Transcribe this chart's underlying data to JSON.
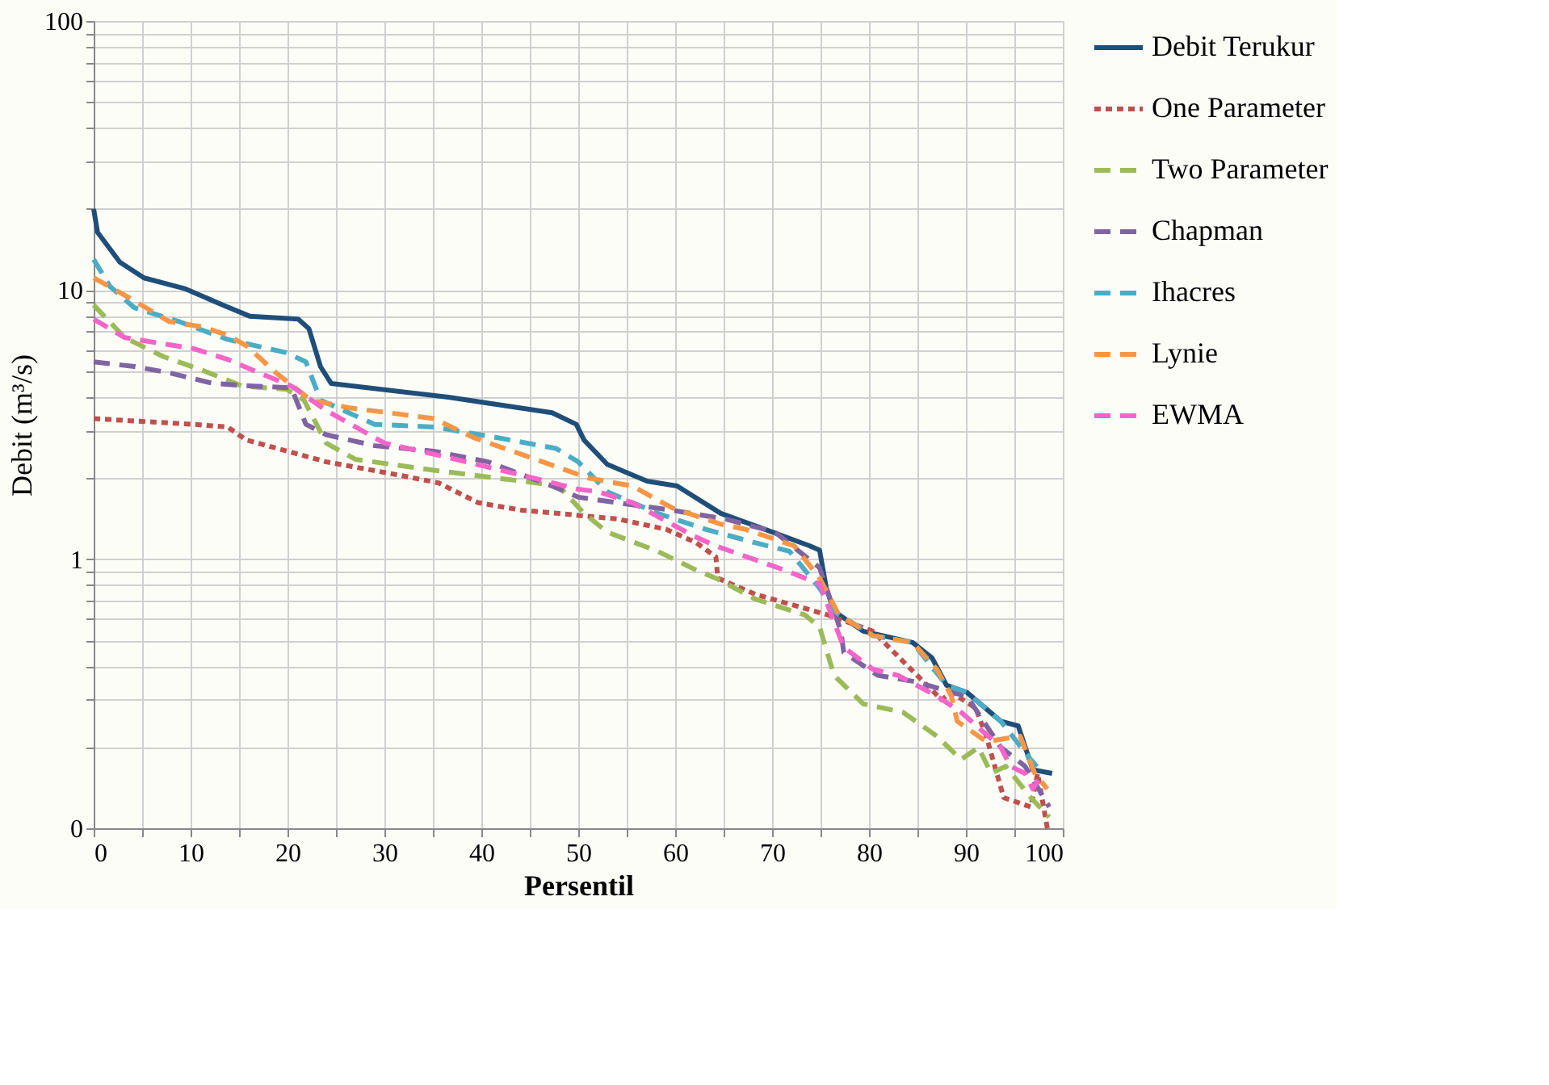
{
  "chart_data": {
    "type": "line",
    "xlabel": "Persentil",
    "ylabel": "Debit (m³/s)",
    "log": "y",
    "grid": true,
    "legend": "right",
    "xlim": [
      0,
      100
    ],
    "ylim": [
      0.1,
      100
    ],
    "xticks": [
      0,
      {
        "value": 5,
        "label": null
      },
      10,
      {
        "value": 15,
        "label": null
      },
      20,
      {
        "value": 25,
        "label": null
      },
      30,
      {
        "value": 35,
        "label": null
      },
      40,
      {
        "value": 45,
        "label": null
      },
      50,
      {
        "value": 55,
        "label": null
      },
      60,
      {
        "value": 65,
        "label": null
      },
      70,
      {
        "value": 75,
        "label": null
      },
      80,
      {
        "value": 85,
        "label": null
      },
      90,
      {
        "value": 95,
        "label": null
      },
      100
    ],
    "yticks": [
      {
        "value": 0.1,
        "label": "0"
      },
      {
        "value": 0.2,
        "label": null
      },
      {
        "value": 0.3,
        "label": null
      },
      {
        "value": 0.4,
        "label": null
      },
      {
        "value": 0.5,
        "label": null
      },
      {
        "value": 0.6,
        "label": null
      },
      {
        "value": 0.7,
        "label": null
      },
      {
        "value": 0.8,
        "label": null
      },
      {
        "value": 0.9,
        "label": null
      },
      1,
      {
        "value": 2,
        "label": null
      },
      {
        "value": 3,
        "label": null
      },
      {
        "value": 4,
        "label": null
      },
      {
        "value": 5,
        "label": null
      },
      {
        "value": 6,
        "label": null
      },
      {
        "value": 7,
        "label": null
      },
      {
        "value": 8,
        "label": null
      },
      {
        "value": 9,
        "label": null
      },
      10,
      {
        "value": 20,
        "label": null
      },
      {
        "value": 30,
        "label": null
      },
      {
        "value": 40,
        "label": null
      },
      {
        "value": 50,
        "label": null
      },
      {
        "value": 60,
        "label": null
      },
      {
        "value": 70,
        "label": null
      },
      {
        "value": 80,
        "label": null
      },
      {
        "value": 90,
        "label": null
      },
      100
    ],
    "series": [
      {
        "name": "Debit Terukur",
        "color": "#1f4e79",
        "line_style": "solid",
        "x": [
          0,
          0.4,
          2.7,
          5.2,
          9.5,
          13.3,
          16.1,
          21.1,
          22.2,
          23.4,
          24.5,
          36.6,
          47.3,
          49.8,
          50.6,
          53,
          57.1,
          60.2,
          64.7,
          69.3,
          73.9,
          74.9,
          75.6,
          76.4,
          79.4,
          84.5,
          86.5,
          88,
          90.1,
          93.6,
          95.4,
          96.9,
          98.9
        ],
        "values": [
          20,
          16.4,
          12.7,
          11.1,
          10.1,
          8.8,
          8.0,
          7.8,
          7.2,
          5.2,
          4.5,
          4.0,
          3.5,
          3.17,
          2.77,
          2.25,
          1.95,
          1.87,
          1.48,
          1.29,
          1.12,
          1.08,
          0.78,
          0.64,
          0.54,
          0.49,
          0.43,
          0.34,
          0.32,
          0.25,
          0.24,
          0.165,
          0.16
        ]
      },
      {
        "name": "One Parameter",
        "color": "#c0504d",
        "line_style": "dotted",
        "x": [
          0,
          10.3,
          13.8,
          15.8,
          24,
          31.6,
          35.6,
          39.7,
          44.2,
          48,
          50.3,
          54.1,
          59.1,
          62.2,
          64.2,
          64.4,
          68.3,
          75.8,
          80.4,
          87.5,
          88.5,
          91,
          92.1,
          93.9,
          96.7,
          97.4,
          98.4
        ],
        "values": [
          3.33,
          3.17,
          3.1,
          2.77,
          2.3,
          2.05,
          1.92,
          1.62,
          1.52,
          1.48,
          1.45,
          1.41,
          1.29,
          1.15,
          1.02,
          0.85,
          0.74,
          0.62,
          0.54,
          0.3,
          0.32,
          0.28,
          0.22,
          0.13,
          0.12,
          0.16,
          0.1
        ]
      },
      {
        "name": "Two Parameter",
        "color": "#9bbb59",
        "line_style": "dashed",
        "x": [
          0,
          3.2,
          7.2,
          11.2,
          15.3,
          19.9,
          21.7,
          24,
          27,
          35.1,
          44.2,
          48,
          50.6,
          53,
          58.2,
          62.2,
          64.2,
          68.3,
          73.4,
          74.9,
          76.4,
          79.4,
          83.5,
          87,
          89.5,
          91.3,
          92.6,
          94.1,
          96.7,
          98.6
        ],
        "values": [
          8.8,
          6.66,
          5.66,
          5.04,
          4.4,
          4.28,
          3.9,
          2.7,
          2.35,
          2.14,
          1.95,
          1.87,
          1.48,
          1.26,
          1.07,
          0.91,
          0.85,
          0.71,
          0.62,
          0.56,
          0.37,
          0.29,
          0.27,
          0.22,
          0.18,
          0.2,
          0.16,
          0.17,
          0.13,
          0.11
        ]
      },
      {
        "name": "Chapman",
        "color": "#8064a2",
        "line_style": "dashed",
        "x": [
          0,
          4.2,
          7.8,
          12.3,
          16.4,
          20.4,
          21.9,
          24,
          29,
          35.1,
          40.7,
          47.3,
          50,
          54.1,
          59.7,
          65.2,
          70.3,
          74.9,
          77.1,
          77.4,
          80.9,
          84.9,
          88.5,
          90.1,
          93.6,
          96.1,
          98.6
        ],
        "values": [
          5.41,
          5.2,
          4.93,
          4.5,
          4.4,
          4.33,
          3.17,
          2.9,
          2.64,
          2.52,
          2.3,
          1.87,
          1.7,
          1.62,
          1.52,
          1.41,
          1.26,
          0.93,
          0.54,
          0.45,
          0.37,
          0.35,
          0.32,
          0.31,
          0.2,
          0.17,
          0.12
        ]
      },
      {
        "name": "Ihacres",
        "color": "#4bacc6",
        "line_style": "dashed",
        "x": [
          0,
          1.7,
          4.2,
          8.8,
          13.8,
          19.9,
          21.9,
          23.4,
          29,
          35.1,
          41.6,
          47.7,
          50,
          53,
          58.2,
          63.2,
          68.3,
          71.8,
          74.9,
          76.4,
          80.4,
          84.5,
          88,
          90.1,
          93.6,
          96.7,
          97.9
        ],
        "values": [
          13,
          10.3,
          8.6,
          7.64,
          6.56,
          5.85,
          5.41,
          3.9,
          3.17,
          3.1,
          2.83,
          2.58,
          2.3,
          1.78,
          1.48,
          1.29,
          1.15,
          1.07,
          0.78,
          0.64,
          0.52,
          0.49,
          0.34,
          0.32,
          0.25,
          0.18,
          0.16
        ]
      },
      {
        "name": "Lynie",
        "color": "#f79646",
        "line_style": "dashed",
        "x": [
          0,
          3.6,
          7.8,
          11.2,
          13.8,
          15.8,
          18.8,
          22.4,
          26.4,
          31,
          35.1,
          39.2,
          43.2,
          48,
          51.1,
          55.6,
          59.7,
          64.7,
          67.3,
          72.3,
          74.9,
          76.9,
          80.4,
          84.5,
          87,
          88.5,
          89.1,
          92.1,
          95.6,
          97.1,
          98.4
        ],
        "values": [
          11.1,
          9.4,
          7.64,
          7.3,
          6.8,
          6.2,
          4.93,
          3.9,
          3.65,
          3.48,
          3.33,
          2.83,
          2.52,
          2.19,
          2.0,
          1.87,
          1.55,
          1.35,
          1.29,
          1.12,
          0.85,
          0.62,
          0.52,
          0.49,
          0.39,
          0.31,
          0.25,
          0.21,
          0.22,
          0.16,
          0.14
        ]
      },
      {
        "name": "EWMA",
        "color": "#f564c9",
        "line_style": "dashed",
        "x": [
          0,
          3.2,
          10.3,
          13.8,
          16.4,
          20.4,
          24,
          30,
          36.1,
          44.2,
          50,
          52.1,
          55.6,
          61.7,
          64.2,
          71.3,
          74.9,
          77.4,
          80.4,
          83,
          87,
          89.5,
          93.6,
          94.6,
          96.1,
          96.9,
          97.9
        ],
        "values": [
          7.8,
          6.66,
          6.06,
          5.53,
          5.04,
          4.4,
          3.57,
          2.7,
          2.41,
          2.05,
          1.82,
          1.78,
          1.62,
          1.23,
          1.12,
          0.91,
          0.81,
          0.47,
          0.39,
          0.37,
          0.31,
          0.27,
          0.2,
          0.17,
          0.16,
          0.14,
          0.16
        ]
      }
    ]
  }
}
